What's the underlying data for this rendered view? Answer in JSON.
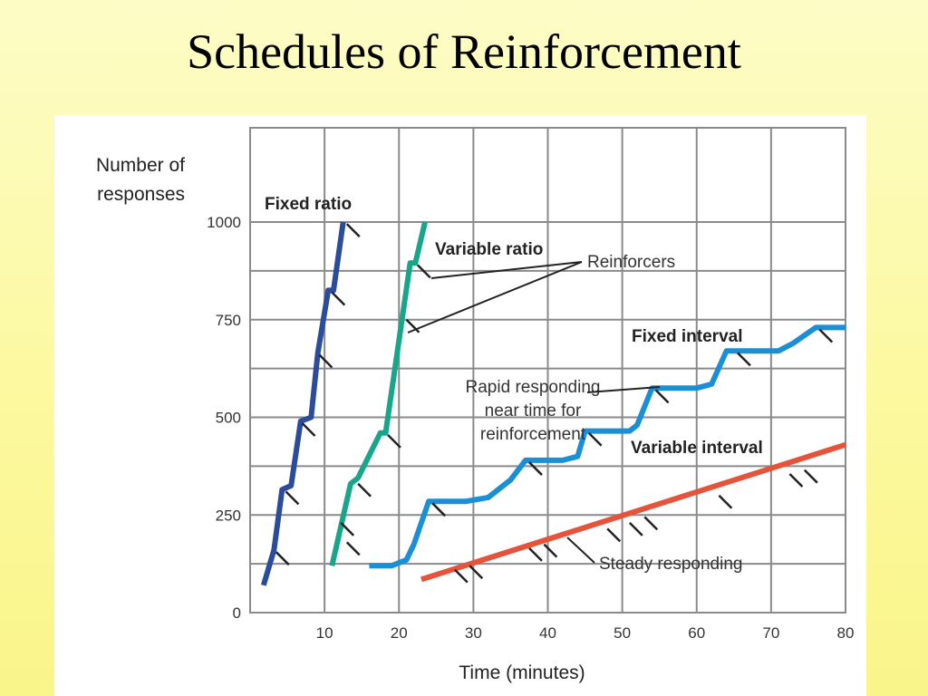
{
  "title": "Schedules of Reinforcement",
  "chart_data": {
    "type": "line",
    "ylabel": "Number of responses",
    "xlabel": "Time (minutes)",
    "ylim": [
      0,
      1000
    ],
    "xlim": [
      0,
      80
    ],
    "grid": true,
    "yticks": [
      0,
      250,
      500,
      750,
      1000
    ],
    "xticks": [
      10,
      20,
      30,
      40,
      50,
      60,
      70,
      80
    ],
    "series": [
      {
        "name": "Fixed ratio",
        "color": "#2b4b9b",
        "points": [
          [
            1.8,
            70
          ],
          [
            3.2,
            160
          ],
          [
            4.3,
            315
          ],
          [
            5.5,
            325
          ],
          [
            6.8,
            490
          ],
          [
            8.2,
            500
          ],
          [
            9.1,
            665
          ],
          [
            10.5,
            825
          ],
          [
            11.2,
            825
          ],
          [
            12.5,
            1000
          ]
        ],
        "reinforcers": [
          [
            3.5,
            155
          ],
          [
            4.8,
            310
          ],
          [
            7.0,
            485
          ],
          [
            9.3,
            660
          ],
          [
            11.0,
            820
          ],
          [
            13.0,
            995
          ]
        ]
      },
      {
        "name": "Variable ratio",
        "color": "#17a689",
        "points": [
          [
            11,
            120
          ],
          [
            13.5,
            330
          ],
          [
            14.5,
            345
          ],
          [
            17.5,
            460
          ],
          [
            18.2,
            460
          ],
          [
            21.5,
            895
          ],
          [
            22.2,
            895
          ],
          [
            23.5,
            1000
          ]
        ],
        "reinforcers": [
          [
            12.2,
            230
          ],
          [
            13.0,
            180
          ],
          [
            14.5,
            330
          ],
          [
            18.5,
            455
          ],
          [
            21.0,
            750
          ],
          [
            22.5,
            890
          ]
        ]
      },
      {
        "name": "Fixed interval",
        "color": "#1b8fd6",
        "points": [
          [
            16,
            120
          ],
          [
            19,
            120
          ],
          [
            21,
            135
          ],
          [
            22,
            175
          ],
          [
            24,
            285
          ],
          [
            29,
            285
          ],
          [
            32,
            295
          ],
          [
            35,
            340
          ],
          [
            37,
            390
          ],
          [
            42,
            390
          ],
          [
            44,
            400
          ],
          [
            45,
            465
          ],
          [
            51,
            465
          ],
          [
            52,
            480
          ],
          [
            54,
            575
          ],
          [
            60,
            575
          ],
          [
            62,
            585
          ],
          [
            64,
            670
          ],
          [
            71,
            670
          ],
          [
            73,
            690
          ],
          [
            76,
            730
          ],
          [
            80,
            730
          ]
        ],
        "reinforcers": [
          [
            24.5,
            280
          ],
          [
            37.5,
            385
          ],
          [
            45.5,
            460
          ],
          [
            54.5,
            570
          ],
          [
            65.5,
            665
          ],
          [
            76.5,
            725
          ]
        ]
      },
      {
        "name": "Variable interval",
        "color": "#e5533b",
        "points": [
          [
            23,
            85
          ],
          [
            80,
            430
          ]
        ],
        "reinforcers": [
          [
            27.5,
            110
          ],
          [
            29.5,
            120
          ],
          [
            37.5,
            165
          ],
          [
            39.5,
            175
          ],
          [
            48,
            215
          ],
          [
            51,
            230
          ],
          [
            53,
            245
          ],
          [
            63,
            300
          ],
          [
            72.5,
            355
          ],
          [
            74.5,
            365
          ]
        ]
      }
    ],
    "annotations": [
      {
        "text": "Reinforcers"
      },
      {
        "text": [
          "Rapid responding",
          "near time for",
          "reinforcement"
        ]
      },
      {
        "text": "Steady responding"
      }
    ]
  }
}
